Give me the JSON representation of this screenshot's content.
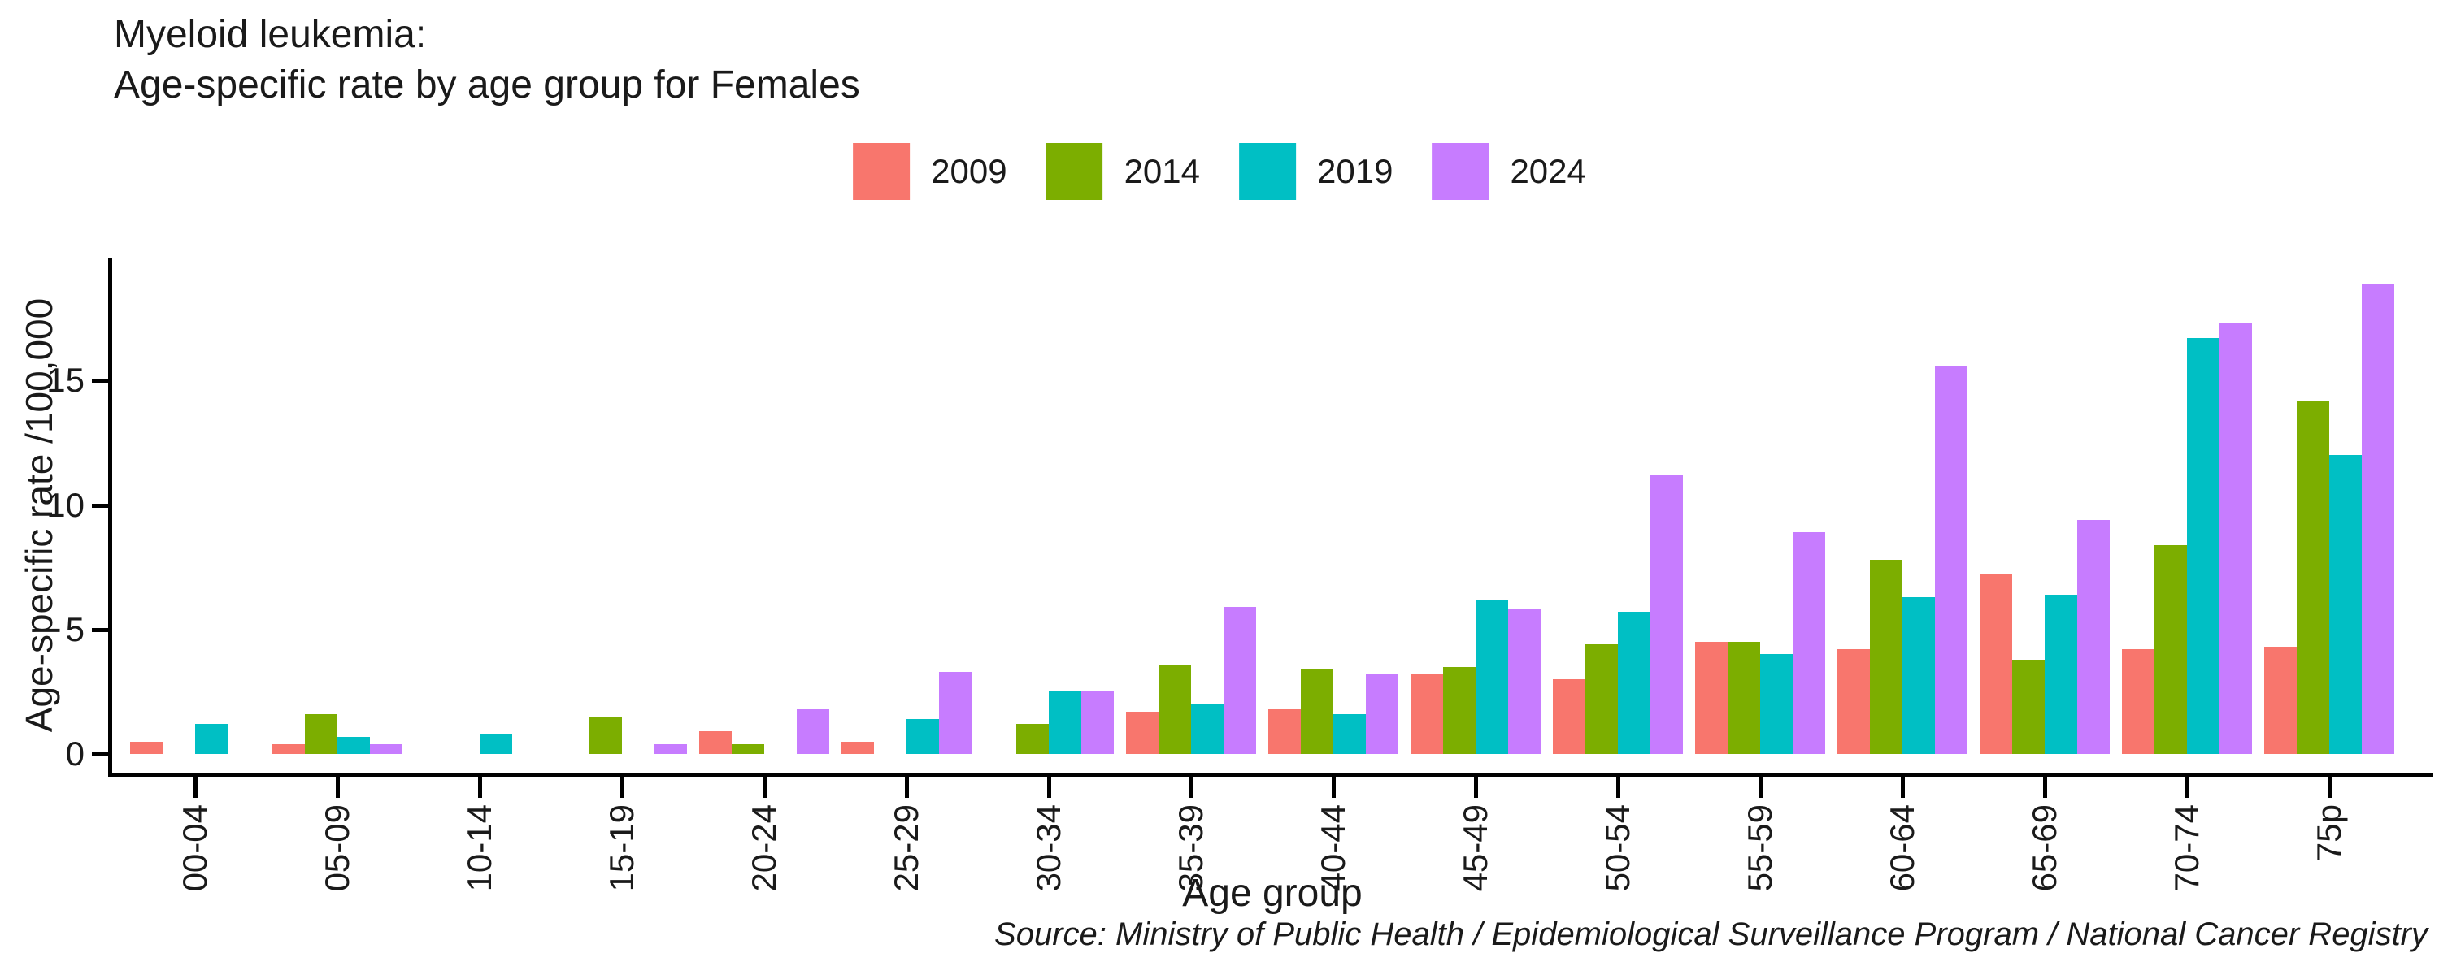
{
  "title": {
    "line1": "Myeloid leukemia:",
    "line2": "Age-specific rate by age group for Females"
  },
  "source_note": "Source: Ministry of Public Health / Epidemiological Surveillance Program / National Cancer Registry",
  "chart_data": {
    "type": "bar",
    "title": "Myeloid leukemia: Age-specific rate by age group for Females",
    "xlabel": "Age group",
    "ylabel": "Age-specific rate /100,000",
    "ylim": [
      0,
      20
    ],
    "yticks": [
      0,
      5,
      10,
      15
    ],
    "grid": false,
    "legend_position": "top-center",
    "categories": [
      "00-04",
      "05-09",
      "10-14",
      "15-19",
      "20-24",
      "25-29",
      "30-34",
      "35-39",
      "40-44",
      "45-49",
      "50-54",
      "55-59",
      "60-64",
      "65-69",
      "70-74",
      "75p"
    ],
    "series": [
      {
        "name": "2009",
        "color": "#F8766D",
        "values": [
          0.5,
          0.4,
          0,
          0,
          0.9,
          0.5,
          0,
          1.7,
          1.8,
          3.2,
          3.0,
          4.5,
          4.2,
          7.2,
          4.2,
          4.3
        ]
      },
      {
        "name": "2014",
        "color": "#7CAE00",
        "values": [
          0,
          1.6,
          0,
          1.5,
          0.4,
          0,
          1.2,
          3.6,
          3.4,
          3.5,
          4.4,
          4.5,
          7.8,
          3.8,
          8.4,
          14.2
        ]
      },
      {
        "name": "2019",
        "color": "#00BFC4",
        "values": [
          1.2,
          0.7,
          0.8,
          0,
          0,
          1.4,
          2.5,
          2.0,
          1.6,
          6.2,
          5.7,
          4.0,
          6.3,
          6.4,
          16.7,
          12.0
        ]
      },
      {
        "name": "2024",
        "color": "#C77CFF",
        "values": [
          0,
          0.4,
          0,
          0.4,
          1.8,
          3.3,
          2.5,
          5.9,
          3.2,
          5.8,
          11.2,
          8.9,
          15.6,
          9.4,
          17.3,
          18.9
        ]
      }
    ]
  }
}
